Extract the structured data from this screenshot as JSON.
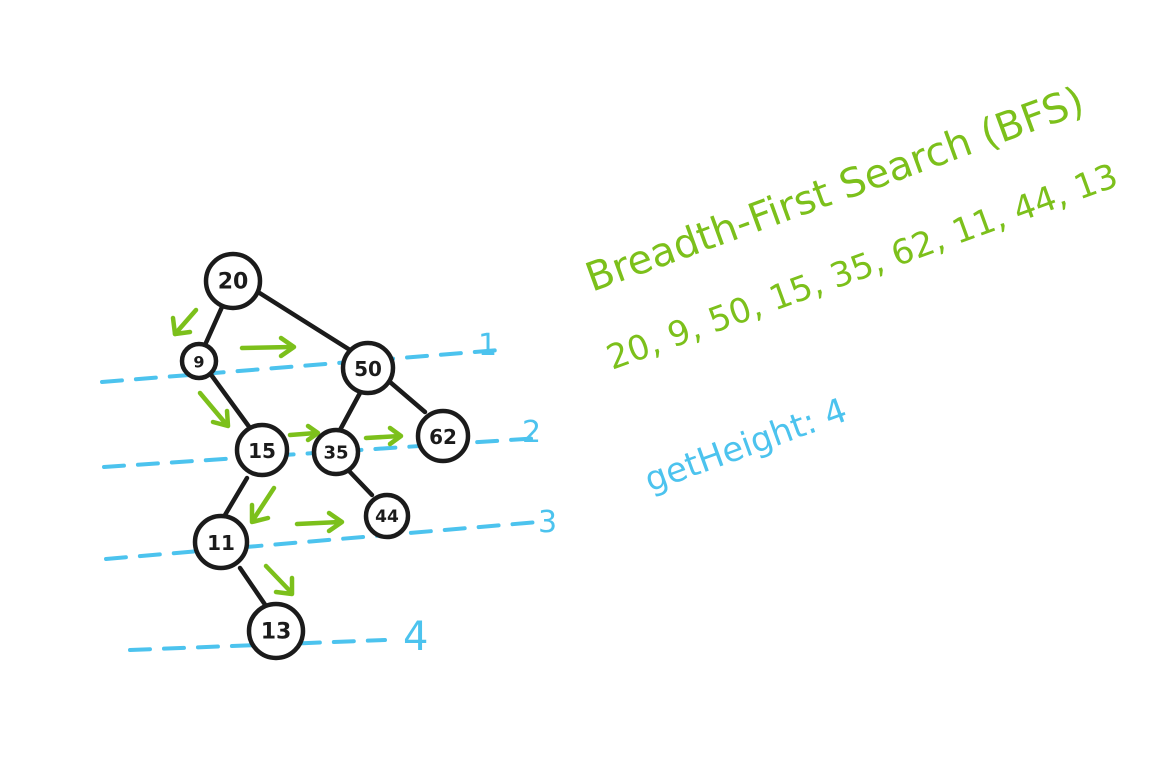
{
  "diagram": {
    "nodes": [
      {
        "id": "n20",
        "label": "20",
        "level": 0
      },
      {
        "id": "n9",
        "label": "9",
        "level": 1
      },
      {
        "id": "n50",
        "label": "50",
        "level": 1
      },
      {
        "id": "n15",
        "label": "15",
        "level": 2
      },
      {
        "id": "n35",
        "label": "35",
        "level": 2
      },
      {
        "id": "n62",
        "label": "62",
        "level": 2
      },
      {
        "id": "n11",
        "label": "11",
        "level": 3
      },
      {
        "id": "n44",
        "label": "44",
        "level": 3
      },
      {
        "id": "n13",
        "label": "13",
        "level": 4
      }
    ],
    "edges": [
      {
        "from": "n20",
        "to": "n9"
      },
      {
        "from": "n20",
        "to": "n50"
      },
      {
        "from": "n9",
        "to": "n15"
      },
      {
        "from": "n50",
        "to": "n35"
      },
      {
        "from": "n50",
        "to": "n62"
      },
      {
        "from": "n15",
        "to": "n11"
      },
      {
        "from": "n35",
        "to": "n44"
      },
      {
        "from": "n11",
        "to": "n13"
      }
    ],
    "level_labels": [
      "1",
      "2",
      "3",
      "4"
    ]
  },
  "notes": {
    "title": "Breadth-First Search (BFS)",
    "traversal": "20, 9, 50, 15, 35, 62, 11, 44, 13",
    "height": "getHeight: 4"
  },
  "colors": {
    "ink": "#1b1b1b",
    "traversal_green": "#7cc01b",
    "level_blue": "#4cc3ee"
  }
}
